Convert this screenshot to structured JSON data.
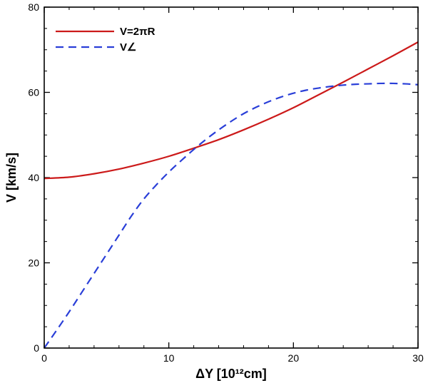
{
  "chart_data": {
    "type": "line",
    "xlabel": "ΔY [10¹²cm]",
    "ylabel": "V [km/s]",
    "xlim": [
      0,
      30
    ],
    "ylim": [
      0,
      80
    ],
    "xticks": [
      0,
      10,
      20,
      30
    ],
    "xtick_labels": [
      "0",
      "10",
      "20",
      "30"
    ],
    "yticks": [
      0,
      20,
      40,
      60,
      80
    ],
    "ytick_labels": [
      "0",
      "20",
      "40",
      "60",
      "80"
    ],
    "grid": false,
    "legend_position": "top-left",
    "series": [
      {
        "name": "V=2πR",
        "color": "#cc1a1a",
        "style": "solid",
        "x": [
          0,
          2,
          4,
          6,
          8,
          10,
          12,
          14,
          16,
          18,
          20,
          22,
          24,
          26,
          28,
          30
        ],
        "y": [
          39.8,
          40.1,
          40.9,
          42.0,
          43.4,
          45.0,
          46.9,
          48.9,
          51.2,
          53.7,
          56.4,
          59.4,
          62.4,
          65.5,
          68.6,
          71.8
        ]
      },
      {
        "name": "V∠",
        "color": "#2a3fd8",
        "style": "dashed",
        "x": [
          0,
          1,
          2,
          3,
          4,
          5,
          6,
          7,
          8,
          9,
          10,
          11,
          12,
          13,
          14,
          15,
          16,
          17,
          18,
          19,
          20,
          21,
          22,
          23,
          24,
          25,
          26,
          27,
          28,
          29,
          30
        ],
        "y": [
          0,
          4.2,
          8.5,
          13.0,
          17.5,
          22.0,
          26.5,
          31.0,
          35.0,
          38.3,
          41.3,
          44.0,
          46.6,
          49.0,
          51.2,
          53.2,
          55.0,
          56.5,
          57.8,
          58.9,
          59.8,
          60.5,
          61.0,
          61.4,
          61.7,
          61.9,
          62.0,
          62.1,
          62.1,
          62.0,
          61.8
        ]
      }
    ]
  }
}
